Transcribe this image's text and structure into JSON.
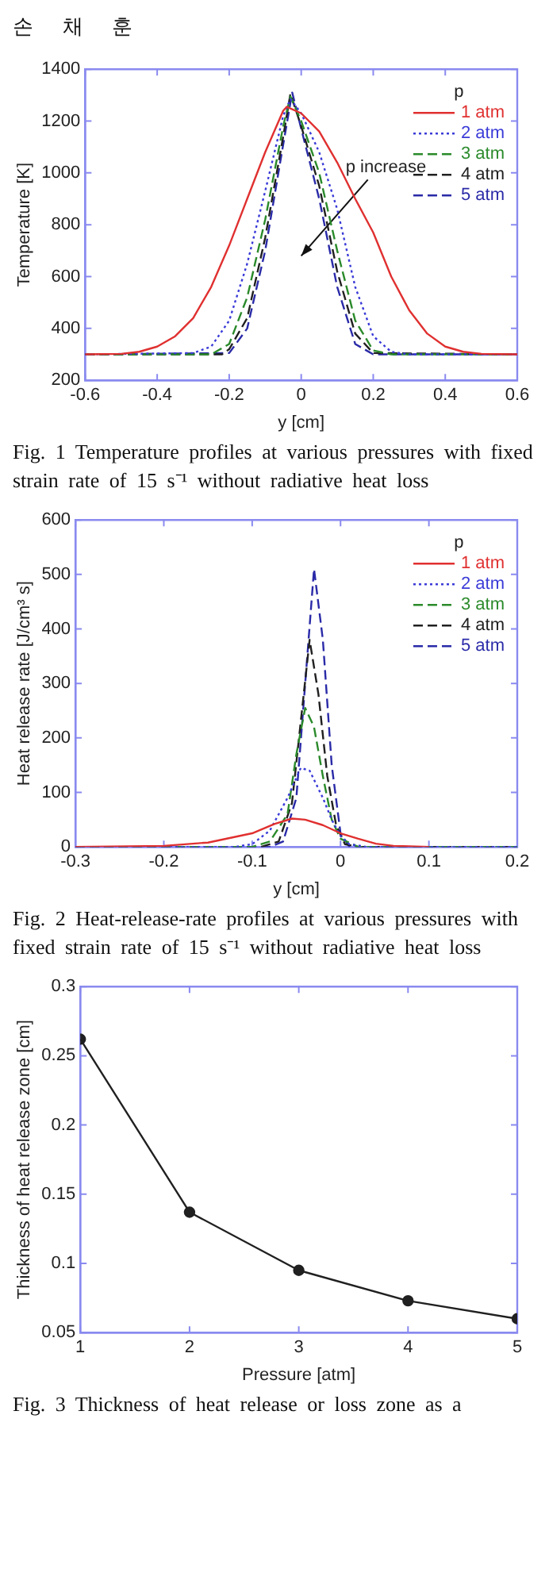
{
  "chart_data": [
    {
      "type": "line",
      "xlabel": "y [cm]",
      "ylabel": "Temperature [K]",
      "legend_title": "p",
      "legend": "top right",
      "grid": false,
      "xlim": [
        -0.6,
        0.6
      ],
      "xticks": [
        -0.6,
        -0.4,
        -0.2,
        0,
        0.2,
        0.4,
        0.6
      ],
      "ylim": [
        200,
        1400
      ],
      "yticks": [
        200,
        400,
        600,
        800,
        1000,
        1200,
        1400
      ],
      "annotations": [
        "손 채 훈",
        "p increase",
        "Fig. 1 Temperature profiles at various pressures with fixed strain rate of 15 s⁻¹ without radiative heat loss"
      ],
      "series": [
        {
          "name": "1 atm",
          "color": "#e03030",
          "line_style": "solid",
          "x": [
            -0.6,
            -0.5,
            -0.45,
            -0.4,
            -0.35,
            -0.3,
            -0.25,
            -0.2,
            -0.15,
            -0.1,
            -0.05,
            -0.04,
            0,
            0.05,
            0.1,
            0.15,
            0.2,
            0.25,
            0.3,
            0.35,
            0.4,
            0.45,
            0.5,
            0.6
          ],
          "values": [
            300,
            302,
            310,
            330,
            370,
            440,
            560,
            720,
            900,
            1080,
            1240,
            1255,
            1230,
            1160,
            1040,
            900,
            770,
            600,
            470,
            380,
            330,
            310,
            302,
            300
          ]
        },
        {
          "name": "2 atm",
          "color": "#3a3ad8",
          "line_style": "dotted",
          "x": [
            -0.6,
            -0.3,
            -0.25,
            -0.2,
            -0.15,
            -0.1,
            -0.05,
            -0.03,
            0,
            0.05,
            0.1,
            0.15,
            0.2,
            0.25,
            0.3,
            0.6
          ],
          "values": [
            300,
            305,
            330,
            430,
            650,
            930,
            1220,
            1285,
            1230,
            1080,
            860,
            560,
            370,
            310,
            300,
            300
          ]
        },
        {
          "name": "3 atm",
          "color": "#2a8a2a",
          "line_style": "dashed",
          "x": [
            -0.6,
            -0.25,
            -0.2,
            -0.15,
            -0.1,
            -0.05,
            -0.03,
            0,
            0.05,
            0.1,
            0.15,
            0.2,
            0.25,
            0.6
          ],
          "values": [
            300,
            300,
            340,
            520,
            820,
            1180,
            1295,
            1200,
            1000,
            700,
            430,
            315,
            300,
            300
          ]
        },
        {
          "name": "4 atm",
          "color": "#202020",
          "line_style": "dashed",
          "x": [
            -0.6,
            -0.22,
            -0.2,
            -0.15,
            -0.1,
            -0.05,
            -0.03,
            0,
            0.05,
            0.1,
            0.15,
            0.2,
            0.6
          ],
          "values": [
            300,
            300,
            320,
            440,
            750,
            1140,
            1305,
            1180,
            950,
            620,
            380,
            305,
            300
          ]
        },
        {
          "name": "5 atm",
          "color": "#2a2aa8",
          "line_style": "dashed",
          "x": [
            -0.6,
            -0.2,
            -0.15,
            -0.1,
            -0.05,
            -0.025,
            0,
            0.05,
            0.1,
            0.15,
            0.2,
            0.6
          ],
          "values": [
            300,
            305,
            400,
            700,
            1110,
            1310,
            1170,
            900,
            560,
            340,
            300,
            300
          ]
        }
      ]
    },
    {
      "type": "line",
      "xlabel": "y [cm]",
      "ylabel": "Heat release rate [J/cm³ s]",
      "legend_title": "p",
      "legend": "top right",
      "grid": false,
      "xlim": [
        -0.3,
        0.2
      ],
      "xticks": [
        -0.3,
        -0.2,
        -0.1,
        0,
        0.1,
        0.2
      ],
      "ylim": [
        0,
        600
      ],
      "yticks": [
        0,
        100,
        200,
        300,
        400,
        500,
        600
      ],
      "annotations": [
        "Fig. 2 Heat-release-rate profiles at various pressures with fixed strain rate of 15 s⁻¹ without radiative heat loss"
      ],
      "series": [
        {
          "name": "1 atm",
          "color": "#e03030",
          "line_style": "solid",
          "x": [
            -0.3,
            -0.2,
            -0.15,
            -0.1,
            -0.075,
            -0.055,
            -0.04,
            -0.02,
            0,
            0.02,
            0.04,
            0.06,
            0.1
          ],
          "values": [
            0,
            2,
            8,
            25,
            42,
            52,
            50,
            40,
            25,
            15,
            6,
            2,
            0
          ]
        },
        {
          "name": "2 atm",
          "color": "#3a3ad8",
          "line_style": "dotted",
          "x": [
            -0.3,
            -0.12,
            -0.1,
            -0.08,
            -0.06,
            -0.045,
            -0.035,
            -0.02,
            -0.01,
            0,
            0.01,
            0.03,
            0.2
          ],
          "values": [
            0,
            0,
            5,
            30,
            90,
            145,
            140,
            90,
            50,
            20,
            5,
            0,
            0
          ]
        },
        {
          "name": "3 atm",
          "color": "#2a8a2a",
          "line_style": "dashed",
          "x": [
            -0.3,
            -0.1,
            -0.08,
            -0.06,
            -0.05,
            -0.04,
            -0.03,
            -0.02,
            -0.01,
            0,
            0.02,
            0.2
          ],
          "values": [
            0,
            0,
            10,
            60,
            170,
            255,
            220,
            130,
            50,
            15,
            0,
            0
          ]
        },
        {
          "name": "4 atm",
          "color": "#202020",
          "line_style": "dashed",
          "x": [
            -0.3,
            -0.09,
            -0.07,
            -0.055,
            -0.045,
            -0.035,
            -0.025,
            -0.015,
            -0.005,
            0.005,
            0.02,
            0.2
          ],
          "values": [
            0,
            0,
            10,
            80,
            230,
            380,
            280,
            130,
            40,
            5,
            0,
            0
          ]
        },
        {
          "name": "5 atm",
          "color": "#2a2aa8",
          "line_style": "dashed",
          "x": [
            -0.3,
            -0.08,
            -0.065,
            -0.05,
            -0.04,
            -0.03,
            -0.02,
            -0.01,
            0,
            0.01,
            0.2
          ],
          "values": [
            0,
            0,
            10,
            90,
            300,
            510,
            380,
            150,
            25,
            0,
            0
          ]
        }
      ]
    },
    {
      "type": "line",
      "xlabel": "Pressure [atm]",
      "ylabel": "Thickness of heat release zone [cm]",
      "grid": false,
      "marker": "circle",
      "line_style": "solid",
      "xlim": [
        1,
        5
      ],
      "xticks": [
        1,
        2,
        3,
        4,
        5
      ],
      "ylim": [
        0.05,
        0.3
      ],
      "yticks": [
        0.05,
        0.1,
        0.15,
        0.2,
        0.25,
        0.3
      ],
      "annotations": [
        "Fig. 3 Thickness of heat release or loss zone as a"
      ],
      "series": [
        {
          "color": "#202020",
          "x": [
            1,
            2,
            3,
            4,
            5
          ],
          "values": [
            0.262,
            0.137,
            0.095,
            0.073,
            0.06
          ]
        }
      ]
    }
  ]
}
